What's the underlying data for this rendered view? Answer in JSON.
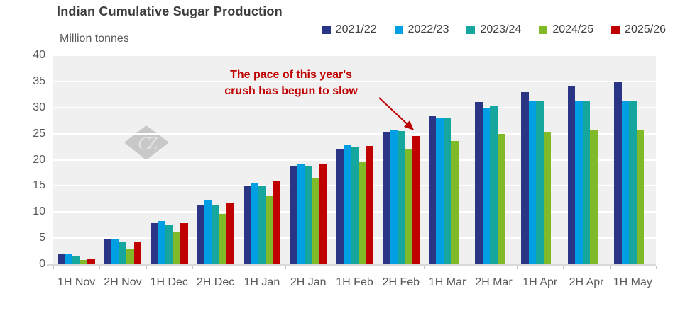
{
  "title": "Indian Cumulative Sugar Production",
  "units_label": "Million tonnes",
  "watermark_text": "CZ",
  "annotation": {
    "line1": "The pace of this year's",
    "line2": "crush has begun to slow",
    "color": "#c00000"
  },
  "axes": {
    "y_tick_labels": [
      "0",
      "5",
      "10",
      "15",
      "20",
      "25",
      "30",
      "35",
      "40"
    ],
    "x_tick_labels": [
      "1H Nov",
      "2H Nov",
      "1H Dec",
      "2H Dec",
      "1H Jan",
      "2H Jan",
      "1H Feb",
      "2H Feb",
      "1H Mar",
      "2H Mar",
      "1H Apr",
      "2H Apr",
      "1H May"
    ]
  },
  "chart_data": {
    "type": "bar",
    "title": "Indian Cumulative Sugar Production",
    "ylabel": "Million tonnes",
    "xlabel": "",
    "ylim": [
      0,
      40
    ],
    "ytick_step": 5,
    "grid": true,
    "legend_position": "top-right",
    "plot_background": "#f0f0f0",
    "categories": [
      "1H Nov",
      "2H Nov",
      "1H Dec",
      "2H Dec",
      "1H Jan",
      "2H Jan",
      "1H Feb",
      "2H Feb",
      "1H Mar",
      "2H Mar",
      "1H Apr",
      "2H Apr",
      "1H May"
    ],
    "series": [
      {
        "name": "2021/22",
        "color": "#2b3585",
        "values": [
          2.1,
          4.7,
          7.9,
          11.4,
          15.0,
          18.7,
          22.1,
          25.3,
          28.3,
          31.0,
          33.0,
          34.2,
          34.8
        ]
      },
      {
        "name": "2022/23",
        "color": "#009fe3",
        "values": [
          1.9,
          4.7,
          8.3,
          12.2,
          15.6,
          19.3,
          22.8,
          25.8,
          28.1,
          29.9,
          31.2,
          31.2,
          31.2
        ]
      },
      {
        "name": "2023/24",
        "color": "#15a79d",
        "values": [
          1.6,
          4.4,
          7.5,
          11.3,
          14.9,
          18.7,
          22.5,
          25.5,
          28.0,
          30.2,
          31.2,
          31.3,
          31.2
        ]
      },
      {
        "name": "2024/25",
        "color": "#80ba28",
        "values": [
          0.8,
          2.9,
          6.1,
          9.6,
          13.0,
          16.5,
          19.7,
          22.0,
          23.6,
          24.9,
          25.4,
          25.7,
          25.7
        ]
      },
      {
        "name": "2025/26",
        "color": "#c00000",
        "values": [
          1.0,
          4.2,
          7.9,
          11.8,
          15.9,
          19.3,
          22.6,
          24.6,
          null,
          null,
          null,
          null,
          null
        ]
      }
    ],
    "annotation": "The pace of this year's crush has begun to slow"
  }
}
